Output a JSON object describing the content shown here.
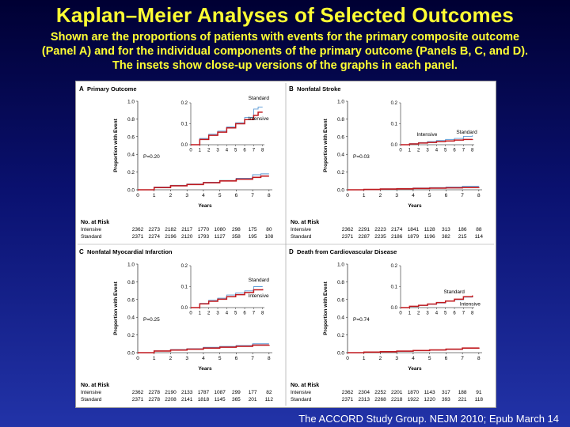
{
  "header": {
    "title": "Kaplan–Meier Analyses of Selected Outcomes",
    "subtitle_lines": [
      "Shown are  the proportions  of  patients with  events for  the primary composite outcome",
      "(Panel A) and for the individual components of the primary outcome (Panels B, C, and D).",
      "The insets show close-up versions of the graphs in each panel."
    ]
  },
  "citation": "The ACCORD Study Group. NEJM 2010; Epub March 14",
  "colors": {
    "standard": "#5b9bd5",
    "intensive": "#c0191e",
    "axis": "#000000"
  },
  "chart_data": [
    {
      "type": "line",
      "panel": "A",
      "title": "Primary Outcome",
      "xlabel": "Years",
      "ylabel": "Proportion with Event",
      "xlim": [
        0,
        8.2
      ],
      "ylim": [
        0,
        1.0
      ],
      "yticks": [
        "0.0",
        "0.2",
        "0.4",
        "0.6",
        "0.8",
        "1.0"
      ],
      "xticks": [
        "0",
        "1",
        "2",
        "3",
        "4",
        "5",
        "6",
        "7",
        "8"
      ],
      "p_value": "P=0.20",
      "inset": {
        "ylim": [
          0,
          0.2
        ],
        "yticks": [
          "0.0",
          "0.1",
          "0.2"
        ],
        "xticks": [
          "0",
          "1",
          "2",
          "3",
          "4",
          "5",
          "6",
          "7",
          "8"
        ],
        "labels": [
          "Standard",
          "Intensive"
        ]
      },
      "series": [
        {
          "name": "Standard",
          "x": [
            0,
            1,
            2,
            3,
            4,
            5,
            6,
            7,
            7.5,
            8
          ],
          "y": [
            0,
            0.03,
            0.05,
            0.065,
            0.085,
            0.105,
            0.13,
            0.17,
            0.18,
            0.18
          ]
        },
        {
          "name": "Intensive",
          "x": [
            0,
            1,
            2,
            3,
            4,
            5,
            6,
            7,
            7.5,
            8
          ],
          "y": [
            0,
            0.025,
            0.045,
            0.06,
            0.08,
            0.1,
            0.12,
            0.14,
            0.155,
            0.155
          ]
        }
      ],
      "risk_table": {
        "header": "No. at Risk",
        "rows": [
          {
            "label": "Intensive",
            "values": [
              "2362",
              "2273",
              "2182",
              "2117",
              "1770",
              "1080",
              "298",
              "175",
              "80"
            ]
          },
          {
            "label": "Standard",
            "values": [
              "2371",
              "2274",
              "2196",
              "2120",
              "1793",
              "1127",
              "358",
              "195",
              "108"
            ]
          }
        ]
      }
    },
    {
      "type": "line",
      "panel": "B",
      "title": "Nonfatal Stroke",
      "xlabel": "Years",
      "ylabel": "Proportion with Event",
      "xlim": [
        0,
        8.2
      ],
      "ylim": [
        0,
        1.0
      ],
      "yticks": [
        "0.0",
        "0.2",
        "0.4",
        "0.6",
        "0.8",
        "1.0"
      ],
      "xticks": [
        "0",
        "1",
        "2",
        "3",
        "4",
        "5",
        "6",
        "7",
        "8"
      ],
      "p_value": "P=0.03",
      "inset": {
        "ylim": [
          0,
          0.2
        ],
        "yticks": [
          "0.0",
          "0.1",
          "0.2"
        ],
        "xticks": [
          "0",
          "1",
          "2",
          "3",
          "4",
          "5",
          "6",
          "7",
          "8"
        ],
        "labels": [
          "Standard",
          "Intensive"
        ]
      },
      "series": [
        {
          "name": "Standard",
          "x": [
            0,
            1,
            2,
            3,
            4,
            5,
            6,
            7,
            8
          ],
          "y": [
            0,
            0.005,
            0.01,
            0.015,
            0.02,
            0.025,
            0.03,
            0.04,
            0.045
          ]
        },
        {
          "name": "Intensive",
          "x": [
            0,
            1,
            2,
            3,
            4,
            5,
            6,
            7,
            8
          ],
          "y": [
            0,
            0.004,
            0.008,
            0.011,
            0.015,
            0.018,
            0.022,
            0.025,
            0.027
          ]
        }
      ],
      "risk_table": {
        "header": "No. at Risk",
        "rows": [
          {
            "label": "Intensive",
            "values": [
              "2362",
              "2291",
              "2223",
              "2174",
              "1841",
              "1128",
              "313",
              "186",
              "88"
            ]
          },
          {
            "label": "Standard",
            "values": [
              "2371",
              "2287",
              "2235",
              "2186",
              "1879",
              "1196",
              "382",
              "215",
              "114"
            ]
          }
        ]
      }
    },
    {
      "type": "line",
      "panel": "C",
      "title": "Nonfatal Myocardial Infarction",
      "xlabel": "Years",
      "ylabel": "Proportion with Event",
      "xlim": [
        0,
        8.2
      ],
      "ylim": [
        0,
        1.0
      ],
      "yticks": [
        "0.0",
        "0.2",
        "0.4",
        "0.6",
        "0.8",
        "1.0"
      ],
      "xticks": [
        "0",
        "1",
        "2",
        "3",
        "4",
        "5",
        "6",
        "7",
        "8"
      ],
      "p_value": "P=0.25",
      "inset": {
        "ylim": [
          0,
          0.2
        ],
        "yticks": [
          "0.0",
          "0.1",
          "0.2"
        ],
        "xticks": [
          "0",
          "1",
          "2",
          "3",
          "4",
          "5",
          "6",
          "7",
          "8"
        ],
        "labels": [
          "Standard",
          "Intensive"
        ]
      },
      "series": [
        {
          "name": "Standard",
          "x": [
            0,
            1,
            2,
            3,
            4,
            5,
            6,
            7,
            8
          ],
          "y": [
            0,
            0.02,
            0.035,
            0.045,
            0.06,
            0.07,
            0.08,
            0.1,
            0.1
          ]
        },
        {
          "name": "Intensive",
          "x": [
            0,
            1,
            2,
            3,
            4,
            5,
            6,
            7,
            8
          ],
          "y": [
            0,
            0.018,
            0.03,
            0.04,
            0.052,
            0.062,
            0.072,
            0.085,
            0.088
          ]
        }
      ],
      "risk_table": {
        "header": "No. at Risk",
        "rows": [
          {
            "label": "Intensive",
            "values": [
              "2362",
              "2278",
              "2190",
              "2133",
              "1787",
              "1087",
              "299",
              "177",
              "82"
            ]
          },
          {
            "label": "Standard",
            "values": [
              "2371",
              "2278",
              "2208",
              "2141",
              "1818",
              "1145",
              "365",
              "201",
              "112"
            ]
          }
        ]
      }
    },
    {
      "type": "line",
      "panel": "D",
      "title": "Death from Cardiovascular Disease",
      "xlabel": "Years",
      "ylabel": "Proportion with Event",
      "xlim": [
        0,
        8.2
      ],
      "ylim": [
        0,
        1.0
      ],
      "yticks": [
        "0.0",
        "0.2",
        "0.4",
        "0.6",
        "0.8",
        "1.0"
      ],
      "xticks": [
        "0",
        "1",
        "2",
        "3",
        "4",
        "5",
        "6",
        "7",
        "8"
      ],
      "p_value": "P=0.74",
      "inset": {
        "ylim": [
          0,
          0.2
        ],
        "yticks": [
          "0.0",
          "0.1",
          "0.2"
        ],
        "xticks": [
          "0",
          "1",
          "2",
          "3",
          "4",
          "5",
          "6",
          "7",
          "8"
        ],
        "labels": [
          "Standard",
          "Intensive"
        ]
      },
      "series": [
        {
          "name": "Standard",
          "x": [
            0,
            1,
            2,
            3,
            4,
            5,
            6,
            7,
            8
          ],
          "y": [
            0,
            0.005,
            0.01,
            0.016,
            0.022,
            0.03,
            0.038,
            0.05,
            0.055
          ]
        },
        {
          "name": "Intensive",
          "x": [
            0,
            1,
            2,
            3,
            4,
            5,
            6,
            7,
            8
          ],
          "y": [
            0,
            0.006,
            0.011,
            0.017,
            0.024,
            0.031,
            0.04,
            0.052,
            0.058
          ]
        }
      ],
      "risk_table": {
        "header": "No. at Risk",
        "rows": [
          {
            "label": "Intensive",
            "values": [
              "2362",
              "2304",
              "2252",
              "2201",
              "1870",
              "1143",
              "317",
              "188",
              "91"
            ]
          },
          {
            "label": "Standard",
            "values": [
              "2371",
              "2313",
              "2268",
              "2218",
              "1922",
              "1220",
              "393",
              "221",
              "118"
            ]
          }
        ]
      }
    }
  ]
}
